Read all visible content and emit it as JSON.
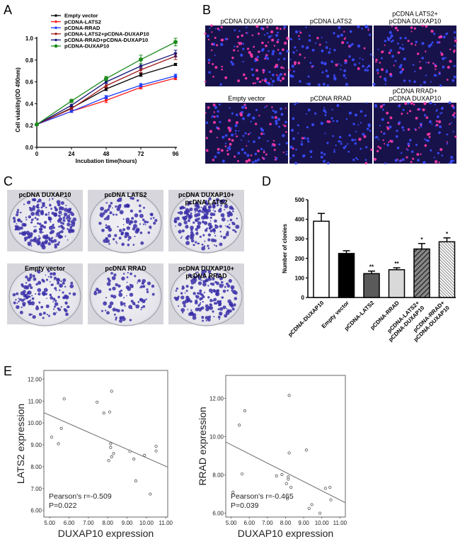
{
  "panels": {
    "a": "A",
    "b": "B",
    "c": "C",
    "d": "D",
    "e": "E"
  },
  "chart_data": [
    {
      "id": "A",
      "type": "line",
      "title": "",
      "xlabel": "Incubation time(hours)",
      "ylabel": "Cell viability(OD 490nm)",
      "x": [
        0,
        24,
        48,
        72,
        96
      ],
      "xticks": [
        "0",
        "24",
        "48",
        "72",
        "96"
      ],
      "yticks": [
        "0.0",
        "0.2",
        "0.4",
        "0.6",
        "0.8",
        "1.0"
      ],
      "xlim": [
        0,
        96
      ],
      "ylim": [
        0,
        1.0
      ],
      "legend_position": "top-left",
      "series": [
        {
          "name": "Empty vector",
          "color": "#000000",
          "marker": "diamond",
          "values": [
            0.21,
            0.36,
            0.535,
            0.665,
            0.76
          ],
          "err": [
            0.01,
            0.01,
            0.015,
            0.015,
            0.01
          ]
        },
        {
          "name": "pCDNA-LATS2",
          "color": "#ff1a1a",
          "marker": "square",
          "values": [
            0.21,
            0.33,
            0.43,
            0.55,
            0.635
          ],
          "err": [
            0.01,
            0.01,
            0.02,
            0.015,
            0.015
          ]
        },
        {
          "name": "pCDNA-RRAD",
          "color": "#1a3cff",
          "marker": "triangle",
          "values": [
            0.21,
            0.33,
            0.46,
            0.57,
            0.655
          ],
          "err": [
            0.01,
            0.01,
            0.015,
            0.015,
            0.015
          ]
        },
        {
          "name": "pCDNA-LATS2+pCDNA-DUXAP10",
          "color": "#a01c1c",
          "marker": "triangle-down",
          "values": [
            0.21,
            0.355,
            0.565,
            0.71,
            0.835
          ],
          "err": [
            0.01,
            0.01,
            0.02,
            0.025,
            0.03
          ]
        },
        {
          "name": "pCDNA-RRAD+pCDNA-DUXAP10",
          "color": "#14147a",
          "marker": "diamond",
          "values": [
            0.21,
            0.385,
            0.6,
            0.745,
            0.86
          ],
          "err": [
            0.01,
            0.01,
            0.015,
            0.02,
            0.03
          ]
        },
        {
          "name": "pCDNA-DUXAP10",
          "color": "#1e8c1e",
          "marker": "circle",
          "values": [
            0.21,
            0.425,
            0.63,
            0.805,
            0.965
          ],
          "err": [
            0.01,
            0.015,
            0.02,
            0.04,
            0.035
          ]
        }
      ]
    },
    {
      "id": "D",
      "type": "bar",
      "ylabel": "Number of clonies",
      "ylim": [
        0,
        500
      ],
      "yticks": [
        "0",
        "100",
        "200",
        "300",
        "400",
        "500"
      ],
      "categories": [
        [
          "pCDNA-DUXAP10"
        ],
        [
          "Empty vector"
        ],
        [
          "pCDNA-LATS2"
        ],
        [
          "pCDNA-RRAD"
        ],
        [
          "pCDNA-LATS2+",
          "pCDNA-DUXAP10"
        ],
        [
          "pCDNA-RRAD+",
          "pCDNA-DUXAP10"
        ]
      ],
      "values": [
        390,
        225,
        122,
        142,
        248,
        285
      ],
      "err": [
        40,
        14,
        13,
        10,
        28,
        20
      ],
      "significance": [
        "",
        "",
        "**",
        "**",
        "*",
        "*"
      ],
      "fills": [
        "#ffffff",
        "#000000",
        "#5a5a5a",
        "#d9d9d9",
        "hatch-dark",
        "hatch-light"
      ]
    },
    {
      "id": "E-left",
      "type": "scatter",
      "xlabel": "DUXAP10 expression",
      "ylabel": "LATS2 expression",
      "xlim": [
        4.7,
        11.1
      ],
      "ylim": [
        5.7,
        12.4
      ],
      "xticks": [
        "5.00",
        "6.00",
        "7.00",
        "8.00",
        "9.00",
        "10.00",
        "11.00"
      ],
      "yticks": [
        "6.00",
        "7.00",
        "8.00",
        "9.00",
        "10.00",
        "11.00",
        "12.00"
      ],
      "points": [
        [
          5.1,
          9.35
        ],
        [
          5.45,
          9.05
        ],
        [
          5.6,
          9.75
        ],
        [
          5.75,
          11.1
        ],
        [
          7.45,
          10.95
        ],
        [
          7.8,
          10.45
        ],
        [
          8.1,
          10.5
        ],
        [
          8.2,
          11.45
        ],
        [
          8.15,
          9.05
        ],
        [
          8.15,
          8.88
        ],
        [
          8.05,
          8.28
        ],
        [
          8.2,
          8.45
        ],
        [
          8.3,
          8.6
        ],
        [
          9.15,
          8.7
        ],
        [
          9.35,
          8.35
        ],
        [
          9.45,
          7.35
        ],
        [
          9.9,
          8.52
        ],
        [
          10.2,
          6.75
        ],
        [
          10.5,
          8.72
        ],
        [
          10.5,
          8.93
        ]
      ],
      "fit_line": [
        [
          4.7,
          10.47
        ],
        [
          11.1,
          7.98
        ]
      ],
      "annotation": [
        "Pearson's r=-0.509",
        "P=0.022"
      ]
    },
    {
      "id": "E-right",
      "type": "scatter",
      "xlabel": "DUXAP10 expression",
      "ylabel": "RRAD expression",
      "xlim": [
        4.7,
        11.3
      ],
      "ylim": [
        5.8,
        13.2
      ],
      "xticks": [
        "5.00",
        "6.00",
        "7.00",
        "8.00",
        "9.00",
        "10.00",
        "11.00"
      ],
      "yticks": [
        "6.00",
        "8.00",
        "10.00",
        "12.00"
      ],
      "points": [
        [
          5.1,
          7.1
        ],
        [
          5.45,
          10.6
        ],
        [
          5.6,
          8.05
        ],
        [
          5.75,
          11.35
        ],
        [
          7.5,
          7.95
        ],
        [
          7.8,
          8.02
        ],
        [
          8.05,
          7.55
        ],
        [
          8.1,
          6.75
        ],
        [
          8.15,
          7.78
        ],
        [
          8.15,
          7.9
        ],
        [
          8.2,
          12.15
        ],
        [
          8.2,
          9.15
        ],
        [
          8.3,
          7.35
        ],
        [
          9.15,
          9.3
        ],
        [
          9.3,
          6.25
        ],
        [
          9.45,
          6.45
        ],
        [
          9.9,
          6.0
        ],
        [
          10.2,
          7.3
        ],
        [
          10.45,
          7.35
        ],
        [
          10.5,
          6.7
        ]
      ],
      "fit_line": [
        [
          4.7,
          9.72
        ],
        [
          11.3,
          6.55
        ]
      ],
      "annotation": [
        "Pearson's r=-0.465",
        "P=0.039"
      ]
    }
  ],
  "panel_b_images": [
    [
      "pCDNA DUXAP10"
    ],
    [
      "pCDNA LATS2"
    ],
    [
      "pCDNA LATS2+",
      "pCDNA DUXAP10"
    ],
    [
      "Empty vector"
    ],
    [
      "pCDNA RRAD"
    ],
    [
      "pCDNA RRAD+",
      "pCDNA DUXAP10"
    ]
  ],
  "panel_c_images": [
    [
      "pcDNA DUXAP10"
    ],
    [
      "pcDNA LATS2"
    ],
    [
      "pcDNA DUXAP10+",
      "pcDNA LATS2"
    ],
    [
      "Empty vector"
    ],
    [
      "pcDNA RRAD"
    ],
    [
      "pcDNA DUXAP10+",
      "pcDNA RRAD"
    ]
  ]
}
